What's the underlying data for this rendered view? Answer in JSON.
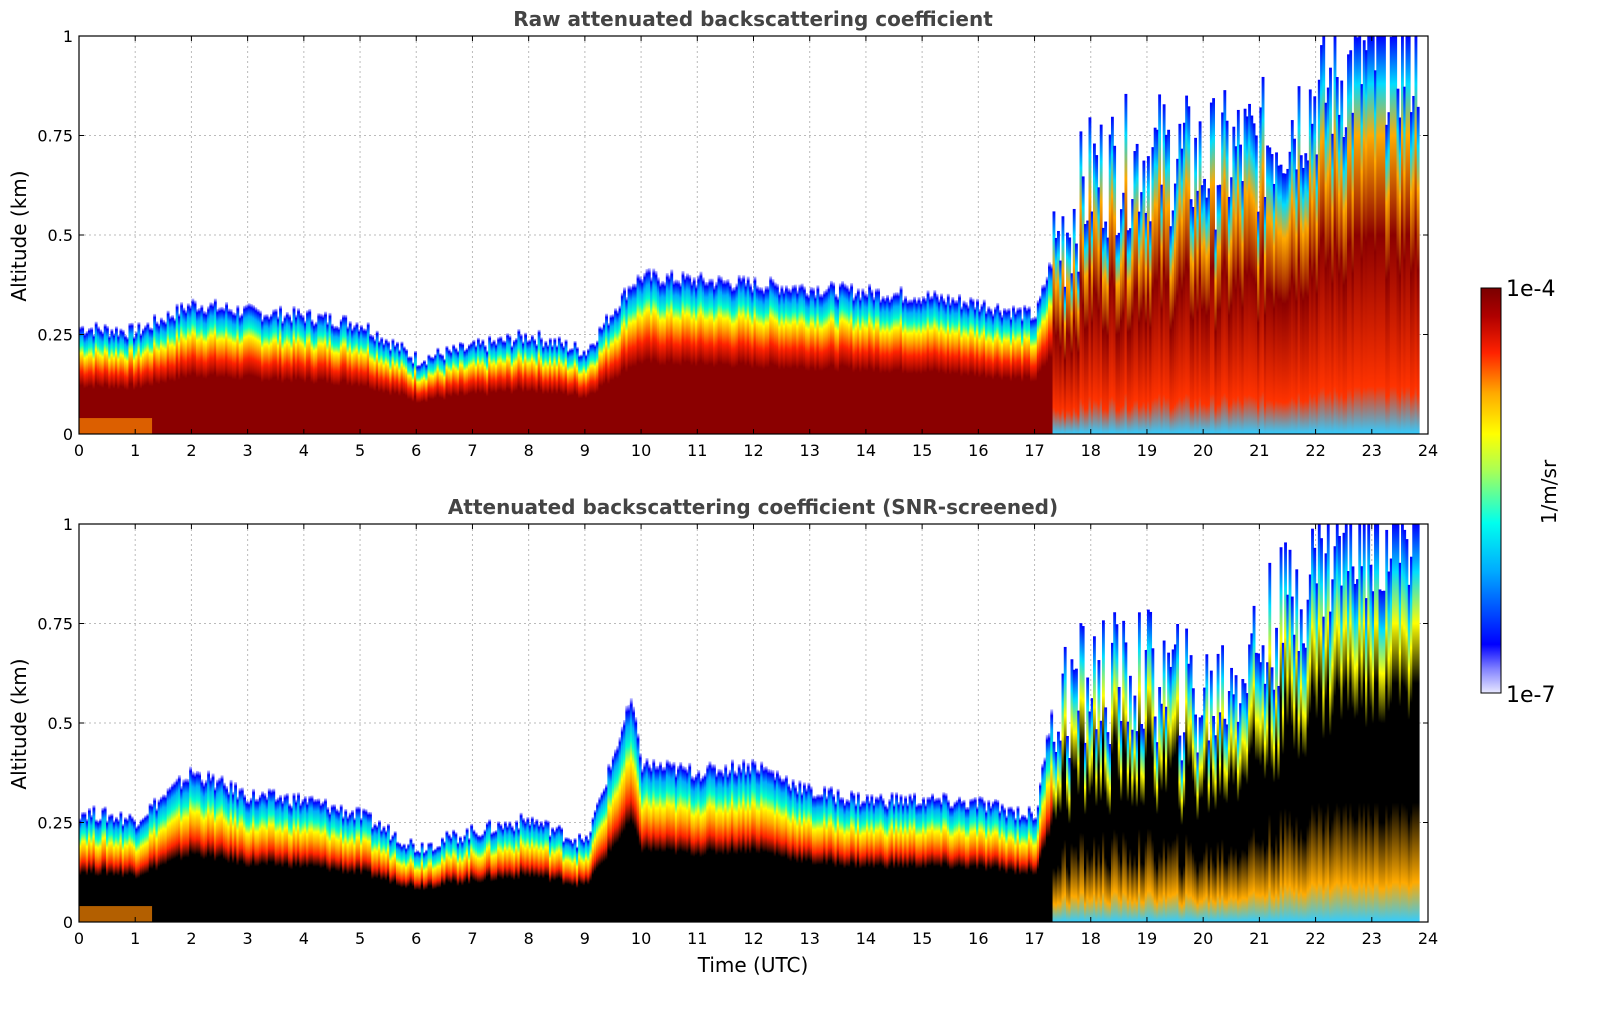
{
  "chart_data": [
    {
      "type": "heatmap",
      "title": "Raw attenuated backscattering coefficient",
      "xlabel": "",
      "ylabel": "Altitude (km)",
      "xlim": [
        0,
        24
      ],
      "ylim": [
        0,
        1
      ],
      "xticks": [
        0,
        1,
        2,
        3,
        4,
        5,
        6,
        7,
        8,
        9,
        10,
        11,
        12,
        13,
        14,
        15,
        16,
        17,
        18,
        19,
        20,
        21,
        22,
        23,
        24
      ],
      "yticks": [
        {
          "v": 0,
          "label": "0"
        },
        {
          "v": 0.25,
          "label": "0.25"
        },
        {
          "v": 0.5,
          "label": "0.5"
        },
        {
          "v": 0.75,
          "label": "0.75"
        },
        {
          "v": 1,
          "label": "1"
        }
      ],
      "grid": true,
      "layer_top_km": {
        "x": [
          0,
          1,
          2,
          3,
          4,
          5,
          6,
          7,
          8,
          9,
          9.8,
          10,
          11,
          12,
          13,
          14,
          15,
          16,
          17,
          17.3,
          18,
          19,
          20,
          21,
          22,
          23,
          23.8
        ],
        "y": [
          0.27,
          0.26,
          0.33,
          0.31,
          0.3,
          0.28,
          0.19,
          0.22,
          0.25,
          0.21,
          0.38,
          0.4,
          0.39,
          0.38,
          0.37,
          0.36,
          0.35,
          0.33,
          0.3,
          0.45,
          0.65,
          0.7,
          0.68,
          0.72,
          0.85,
          0.95,
          0.95
        ]
      }
    },
    {
      "type": "heatmap",
      "title": "Attenuated backscattering coefficient (SNR-screened)",
      "xlabel": "Time (UTC)",
      "ylabel": "Altitude (km)",
      "xlim": [
        0,
        24
      ],
      "ylim": [
        0,
        1
      ],
      "xticks": [
        0,
        1,
        2,
        3,
        4,
        5,
        6,
        7,
        8,
        9,
        10,
        11,
        12,
        13,
        14,
        15,
        16,
        17,
        18,
        19,
        20,
        21,
        22,
        23,
        24
      ],
      "yticks": [
        {
          "v": 0,
          "label": "0"
        },
        {
          "v": 0.25,
          "label": "0.25"
        },
        {
          "v": 0.5,
          "label": "0.5"
        },
        {
          "v": 0.75,
          "label": "0.75"
        },
        {
          "v": 1,
          "label": "1"
        }
      ],
      "grid": true,
      "layer_top_km": {
        "x": [
          0,
          1,
          2,
          3,
          4,
          5,
          6,
          7,
          8,
          9,
          9.8,
          10,
          11,
          12,
          13,
          14,
          15,
          16,
          17,
          17.3,
          18,
          19,
          20,
          21,
          22,
          23,
          23.8
        ],
        "y": [
          0.28,
          0.26,
          0.38,
          0.32,
          0.31,
          0.27,
          0.19,
          0.23,
          0.26,
          0.2,
          0.56,
          0.4,
          0.38,
          0.4,
          0.33,
          0.31,
          0.31,
          0.3,
          0.27,
          0.55,
          0.6,
          0.62,
          0.55,
          0.7,
          0.9,
          1.0,
          1.0
        ]
      }
    }
  ],
  "colorbar": {
    "label": "1/m/sr",
    "max_label": "1e-4",
    "min_label": "1e-7",
    "scale": "log",
    "range": [
      1e-07,
      0.0001
    ],
    "colormap": [
      "#e8e8ff",
      "#0000ff",
      "#00aaff",
      "#00ffee",
      "#aaff55",
      "#ffff00",
      "#ffaa00",
      "#ff2200",
      "#8b0000"
    ]
  }
}
